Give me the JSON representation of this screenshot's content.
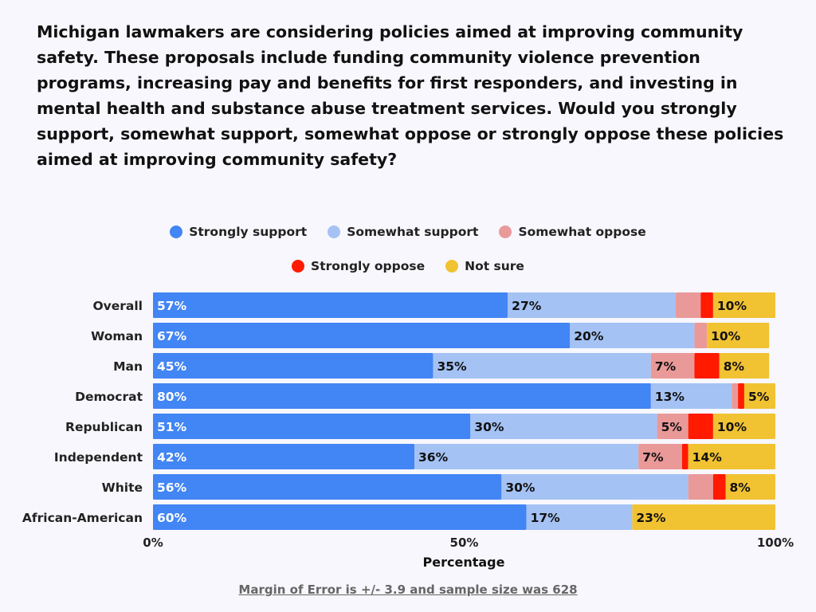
{
  "chart_data": {
    "type": "bar",
    "orientation": "horizontal",
    "stacked": true,
    "title": "Michigan lawmakers are considering policies aimed at improving community safety. These proposals include funding community violence prevention programs, increasing pay and benefits for first responders, and investing in mental health and substance abuse treatment services. Would you strongly support, somewhat support, somewhat oppose or strongly oppose these policies aimed at improving community safety?",
    "xlabel": "Percentage",
    "xlim": [
      0,
      100
    ],
    "xticks": [
      "0%",
      "50%",
      "100%"
    ],
    "legend_position": "top",
    "categories": [
      "Overall",
      "Woman",
      "Man",
      "Democrat",
      "Republican",
      "Independent",
      "White",
      "African-American"
    ],
    "series": [
      {
        "name": "Strongly support",
        "color": "#4285f4",
        "label_color": "#ffffff",
        "values": [
          57,
          67,
          45,
          80,
          51,
          42,
          56,
          60
        ]
      },
      {
        "name": "Somewhat support",
        "color": "#a4c2f4",
        "label_color": "#111111",
        "values": [
          27,
          20,
          35,
          13,
          30,
          36,
          30,
          17
        ]
      },
      {
        "name": "Somewhat oppose",
        "color": "#ea9999",
        "label_color": "#111111",
        "values": [
          4,
          2,
          7,
          1,
          5,
          7,
          4,
          0
        ]
      },
      {
        "name": "Strongly oppose",
        "color": "#ff1a00",
        "label_color": "#111111",
        "values": [
          2,
          0,
          4,
          1,
          4,
          1,
          2,
          0
        ]
      },
      {
        "name": "Not sure",
        "color": "#f1c232",
        "label_color": "#111111",
        "values": [
          10,
          10,
          8,
          5,
          10,
          14,
          8,
          23
        ]
      }
    ]
  },
  "footnote": "Margin of Error is +/- 3.9 and sample size was 628"
}
